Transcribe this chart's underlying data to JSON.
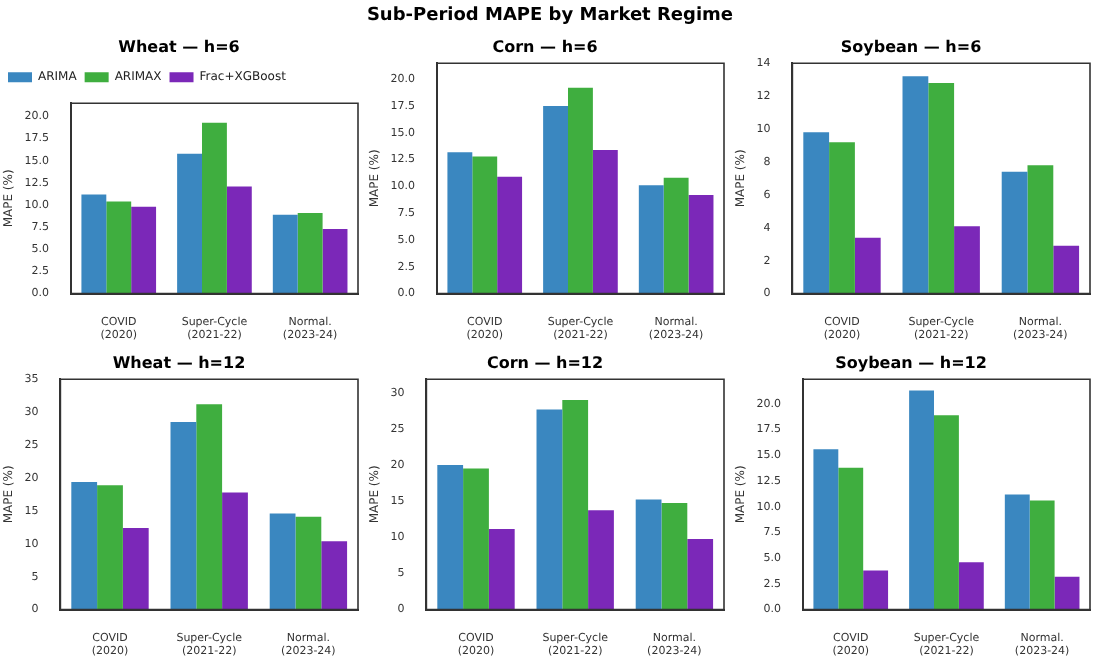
{
  "chart_data": [
    {
      "type": "bar",
      "title": "Wheat — h=6",
      "annotations": [
        "Sub-Period MAPE by Market Regime"
      ],
      "ylabel": "MAPE (%)",
      "categories": [
        "COVID\n(2020)",
        "Super-Cycle\n(2021-22)",
        "Normal.\n(2023-24)"
      ],
      "ylim": [
        0,
        21.5
      ],
      "yticks": [
        {
          "value": 0,
          "label": "0.0"
        },
        {
          "value": 2.5,
          "label": "2.5"
        },
        {
          "value": 5,
          "label": "5.0"
        },
        {
          "value": 7.5,
          "label": "7.5"
        },
        {
          "value": 10,
          "label": "10.0"
        },
        {
          "value": 12.5,
          "label": "12.5"
        },
        {
          "value": 15,
          "label": "15.0"
        },
        {
          "value": 17.5,
          "label": "17.5"
        },
        {
          "value": 20,
          "label": "20.0"
        }
      ],
      "legend": "top left",
      "series": [
        {
          "name": "ARIMA",
          "color": "#3a87c0",
          "values": [
            11.2,
            15.8,
            8.9
          ]
        },
        {
          "name": "ARIMAX",
          "color": "#3fae3f",
          "values": [
            10.4,
            19.3,
            9.1
          ]
        },
        {
          "name": "Frac+XGBoost",
          "color": "#7b28b8",
          "values": [
            9.8,
            12.1,
            7.3
          ]
        }
      ]
    },
    {
      "type": "bar",
      "title": "Corn — h=6",
      "ylabel": "MAPE (%)",
      "categories": [
        "COVID\n(2020)",
        "Super-Cycle\n(2021-22)",
        "Normal.\n(2023-24)"
      ],
      "ylim": [
        0,
        21.5
      ],
      "yticks": [
        {
          "value": 0,
          "label": "0.0"
        },
        {
          "value": 2.5,
          "label": "2.5"
        },
        {
          "value": 5,
          "label": "5.0"
        },
        {
          "value": 7.5,
          "label": "7.5"
        },
        {
          "value": 10,
          "label": "10.0"
        },
        {
          "value": 12.5,
          "label": "12.5"
        },
        {
          "value": 15,
          "label": "15.0"
        },
        {
          "value": 17.5,
          "label": "17.5"
        },
        {
          "value": 20,
          "label": "20.0"
        }
      ],
      "series": [
        {
          "color": "#3a87c0",
          "values": [
            13.2,
            17.5,
            10.1
          ]
        },
        {
          "color": "#3fae3f",
          "values": [
            12.8,
            19.2,
            10.8
          ]
        },
        {
          "color": "#7b28b8",
          "values": [
            10.9,
            13.4,
            9.2
          ]
        }
      ]
    },
    {
      "type": "bar",
      "title": "Soybean — h=6",
      "ylabel": "MAPE (%)",
      "categories": [
        "COVID\n(2020)",
        "Super-Cycle\n(2021-22)",
        "Normal.\n(2023-24)"
      ],
      "ylim": [
        0,
        14
      ],
      "yticks": [
        0,
        2,
        4,
        6,
        8,
        10,
        12,
        14
      ],
      "series": [
        {
          "color": "#3a87c0",
          "values": [
            9.8,
            13.2,
            7.4
          ]
        },
        {
          "color": "#3fae3f",
          "values": [
            9.2,
            12.8,
            7.8
          ]
        },
        {
          "color": "#7b28b8",
          "values": [
            3.4,
            4.1,
            2.9
          ]
        }
      ]
    },
    {
      "type": "bar",
      "title": "Wheat — h=12",
      "ylabel": "MAPE (%)",
      "categories": [
        "COVID\n(2020)",
        "Super-Cycle\n(2021-22)",
        "Normal.\n(2023-24)"
      ],
      "ylim": [
        0,
        35
      ],
      "yticks": [
        0,
        5,
        10,
        15,
        20,
        25,
        30,
        35
      ],
      "series": [
        {
          "color": "#3a87c0",
          "values": [
            19.4,
            28.5,
            14.6
          ]
        },
        {
          "color": "#3fae3f",
          "values": [
            18.9,
            31.2,
            14.1
          ]
        },
        {
          "color": "#7b28b8",
          "values": [
            12.4,
            17.8,
            10.4
          ]
        }
      ]
    },
    {
      "type": "bar",
      "title": "Corn — h=12",
      "ylabel": "MAPE (%)",
      "categories": [
        "COVID\n(2020)",
        "Super-Cycle\n(2021-22)",
        "Normal.\n(2023-24)"
      ],
      "ylim": [
        0,
        32
      ],
      "yticks": [
        0,
        5,
        10,
        15,
        20,
        25,
        30
      ],
      "series": [
        {
          "color": "#3a87c0",
          "values": [
            20.1,
            27.8,
            15.3
          ]
        },
        {
          "color": "#3fae3f",
          "values": [
            19.6,
            29.1,
            14.8
          ]
        },
        {
          "color": "#7b28b8",
          "values": [
            11.2,
            13.8,
            9.8
          ]
        }
      ]
    },
    {
      "type": "bar",
      "title": "Soybean — h=12",
      "ylabel": "MAPE (%)",
      "categories": [
        "COVID\n(2020)",
        "Super-Cycle\n(2021-22)",
        "Normal.\n(2023-24)"
      ],
      "ylim": [
        0,
        22.4
      ],
      "yticks": [
        {
          "value": 0,
          "label": "0.0"
        },
        {
          "value": 2.5,
          "label": "2.5"
        },
        {
          "value": 5,
          "label": "5.0"
        },
        {
          "value": 7.5,
          "label": "7.5"
        },
        {
          "value": 10,
          "label": "10.0"
        },
        {
          "value": 12.5,
          "label": "12.5"
        },
        {
          "value": 15,
          "label": "15.0"
        },
        {
          "value": 17.5,
          "label": "17.5"
        },
        {
          "value": 20,
          "label": "20.0"
        }
      ],
      "series": [
        {
          "color": "#3a87c0",
          "values": [
            15.6,
            21.3,
            11.2
          ]
        },
        {
          "color": "#3fae3f",
          "values": [
            13.8,
            18.9,
            10.6
          ]
        },
        {
          "color": "#7b28b8",
          "values": [
            3.8,
            4.6,
            3.2
          ]
        }
      ]
    }
  ]
}
